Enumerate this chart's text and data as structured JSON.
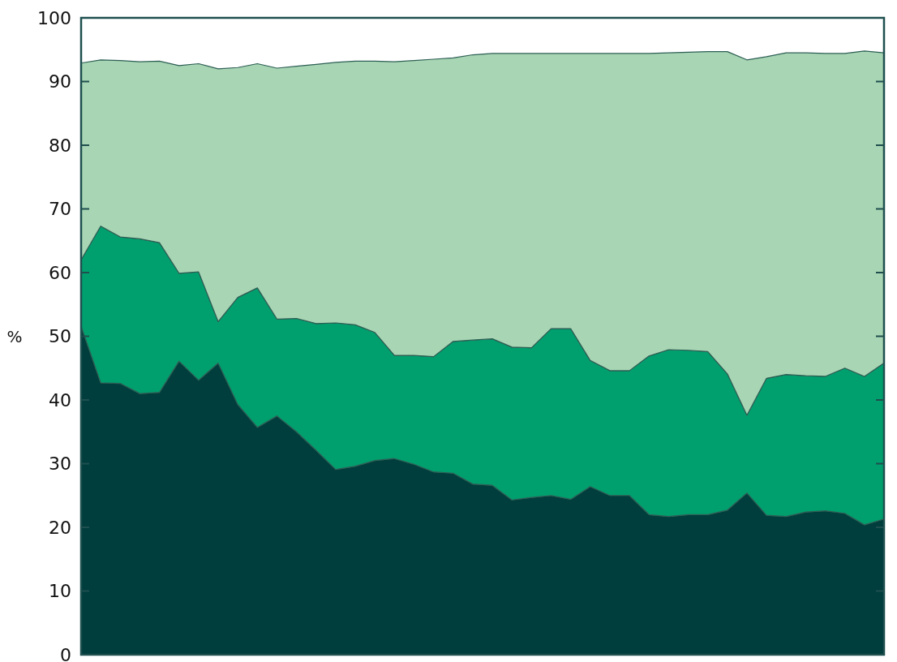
{
  "chart_data": {
    "type": "area",
    "stacked": true,
    "ylabel": "%",
    "categories": [
      null,
      null,
      null,
      null,
      null,
      null,
      null,
      null,
      null,
      null,
      null,
      null,
      null,
      null,
      null,
      null,
      null,
      null,
      null,
      null,
      null,
      null,
      null,
      null,
      null,
      null,
      null,
      null,
      null,
      null,
      null,
      null,
      null,
      null,
      null,
      null,
      null,
      null,
      null,
      null,
      null,
      null
    ],
    "series": [
      {
        "color": "#003d3d",
        "values": [
          51.6,
          42.7,
          42.6,
          41.0,
          41.2,
          46.1,
          43.1,
          45.8,
          39.3,
          35.7,
          37.5,
          35.0,
          32.1,
          29.1,
          29.6,
          30.5,
          30.8,
          29.9,
          28.7,
          28.5,
          26.8,
          26.6,
          24.3,
          24.7,
          25.0,
          24.4,
          26.4,
          25.0,
          25.0,
          22.0,
          21.7,
          22.0,
          22.0,
          22.7,
          25.4,
          21.9,
          21.7,
          22.4,
          22.6,
          22.2,
          20.4,
          21.3
        ]
      },
      {
        "color": "#00a06e",
        "values": [
          10.4,
          24.6,
          23.0,
          24.3,
          23.5,
          13.8,
          17.0,
          6.5,
          16.8,
          21.9,
          15.2,
          17.8,
          19.9,
          23.0,
          22.2,
          20.1,
          16.2,
          17.1,
          18.1,
          20.7,
          22.6,
          23.0,
          24.0,
          23.5,
          26.2,
          26.8,
          19.8,
          19.6,
          19.6,
          24.9,
          26.2,
          25.8,
          25.6,
          21.4,
          12.2,
          21.5,
          22.3,
          21.4,
          21.1,
          22.8,
          23.3,
          24.5
        ]
      },
      {
        "color": "#a8d5b3",
        "values": [
          30.9,
          26.1,
          27.7,
          27.8,
          28.5,
          32.6,
          32.7,
          39.7,
          36.1,
          35.2,
          39.4,
          39.6,
          40.7,
          40.9,
          41.4,
          42.6,
          46.1,
          46.3,
          46.7,
          44.5,
          44.8,
          44.8,
          46.1,
          46.2,
          43.2,
          43.2,
          48.2,
          49.8,
          49.8,
          47.5,
          46.6,
          46.8,
          47.1,
          50.6,
          55.8,
          50.5,
          50.5,
          50.7,
          50.7,
          49.4,
          51.1,
          48.7
        ]
      }
    ],
    "ylim": [
      0,
      100
    ],
    "yticks": [
      0,
      10,
      20,
      30,
      40,
      50,
      60,
      70,
      80,
      90,
      100
    ],
    "tick_labels": "y",
    "grid": false
  }
}
